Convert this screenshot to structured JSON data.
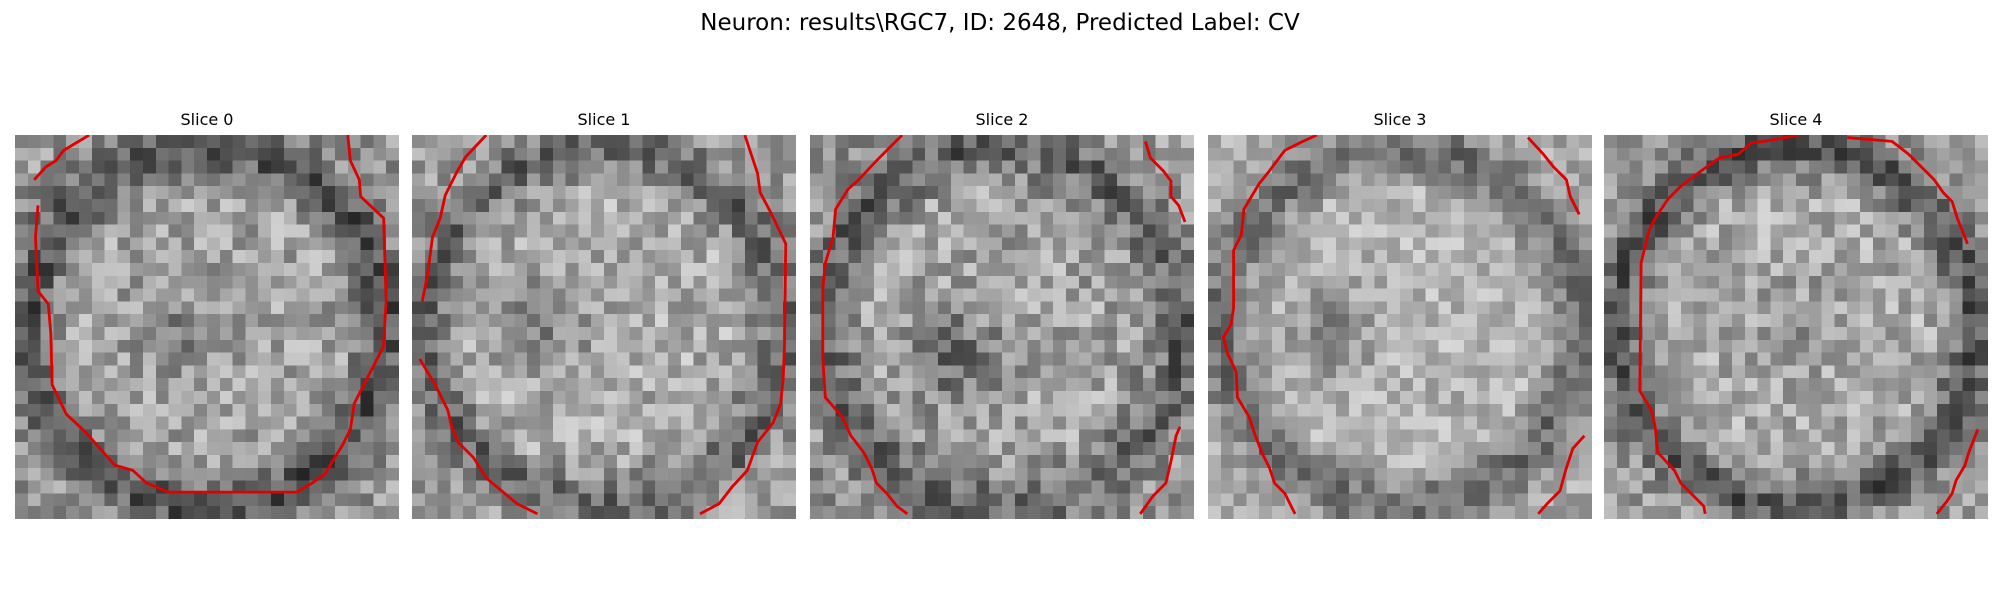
{
  "figure": {
    "title": "Neuron: results\\RGC7, ID: 2648, Predicted Label: CV"
  },
  "panels": [
    {
      "title": "Slice 0"
    },
    {
      "title": "Slice 1"
    },
    {
      "title": "Slice 2"
    },
    {
      "title": "Slice 3"
    },
    {
      "title": "Slice 4"
    }
  ],
  "colors": {
    "contour": "#e00000",
    "background": "#ffffff"
  }
}
